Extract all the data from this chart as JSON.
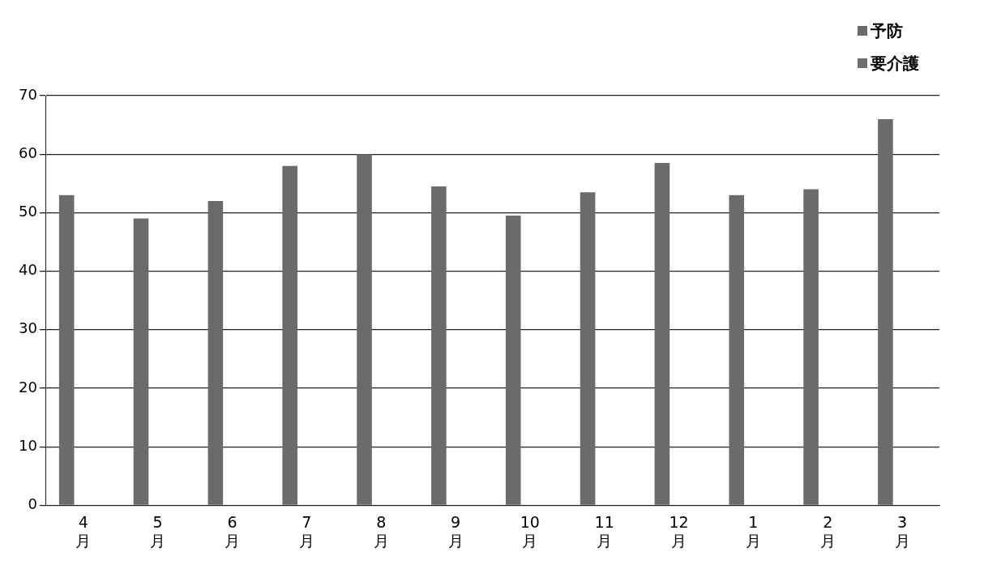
{
  "chart_data": {
    "type": "bar",
    "categories": [
      "4月",
      "5月",
      "6月",
      "7月",
      "8月",
      "9月",
      "10月",
      "11月",
      "12月",
      "1月",
      "2月",
      "3月"
    ],
    "series": [
      {
        "name": "予防",
        "color": "#6b6b6b",
        "values": [
          53,
          49,
          52,
          58,
          60,
          54.5,
          49.5,
          53.5,
          58.5,
          53,
          54,
          66
        ]
      },
      {
        "name": "要介護",
        "color": "#707070",
        "values": [
          null,
          null,
          null,
          null,
          null,
          null,
          null,
          null,
          null,
          null,
          null,
          null
        ]
      }
    ],
    "ylim": [
      0,
      70
    ],
    "yticks": [
      0,
      10,
      20,
      30,
      40,
      50,
      60,
      70
    ],
    "grid": "y",
    "legend": "top right"
  }
}
